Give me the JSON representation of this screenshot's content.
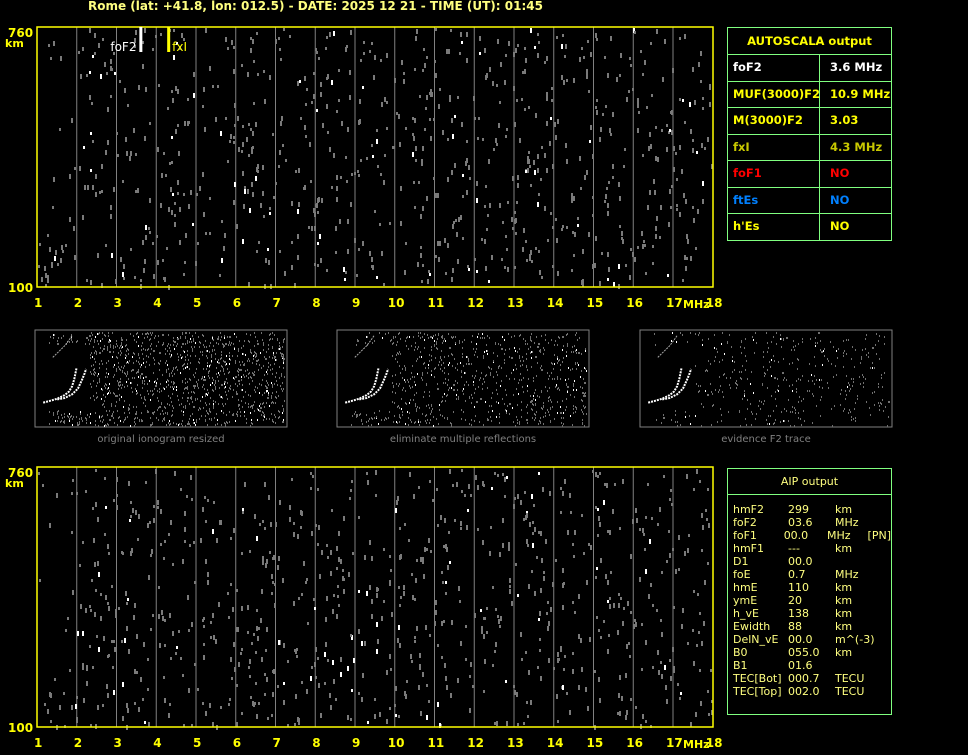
{
  "header": {
    "title": "Rome (lat: +41.8, lon: 012.5) - DATE: 2025 12 21 - TIME (UT): 01:45"
  },
  "colors": {
    "axis": "#ffff00",
    "grid": "#808080",
    "trace": "#ffffff",
    "aip_profile": "#0000ff",
    "aip_fit": "#00ff00",
    "table_border": "#80ff80",
    "foF1": "#ff0000",
    "ftEs": "#0080ff",
    "fxI": "#c8c800"
  },
  "chart_data": [
    {
      "type": "scatter",
      "name": "ionogram-autoscala",
      "ylabel": "km",
      "xlabel": "MHz",
      "xlim": [
        1,
        18
      ],
      "ylim": [
        100,
        760
      ],
      "grid": true,
      "x_ticks": [
        "1",
        "2",
        "3",
        "4",
        "5",
        "6",
        "7",
        "8",
        "9",
        "10",
        "11",
        "12",
        "13",
        "14",
        "15",
        "16",
        "17",
        "18"
      ],
      "y_ticks": [
        "760",
        "700",
        "600",
        "500",
        "400",
        "300",
        "200",
        "100"
      ],
      "markers": [
        {
          "label": "foF2",
          "freq": 3.6,
          "color": "#ffffff"
        },
        {
          "label": "fxI",
          "freq": 4.3,
          "color": "#ffff00"
        }
      ],
      "traces": [
        {
          "role": "o-trace",
          "points": [
            [
              1.35,
              268
            ],
            [
              1.8,
              280
            ],
            [
              2.3,
              295
            ],
            [
              2.8,
              320
            ],
            [
              3.1,
              345
            ],
            [
              3.3,
              380
            ],
            [
              3.45,
              430
            ],
            [
              3.55,
              480
            ],
            [
              3.6,
              505
            ]
          ]
        },
        {
          "role": "x-trace",
          "points": [
            [
              2.3,
              290
            ],
            [
              2.8,
              300
            ],
            [
              3.3,
              325
            ],
            [
              3.7,
              365
            ],
            [
              3.95,
              420
            ],
            [
              4.15,
              470
            ],
            [
              4.25,
              500
            ]
          ]
        },
        {
          "role": "multiple",
          "points": [
            [
              2.0,
              580
            ],
            [
              2.4,
              620
            ],
            [
              2.8,
              660
            ],
            [
              3.1,
              700
            ],
            [
              3.3,
              730
            ]
          ]
        }
      ]
    },
    {
      "type": "scatter",
      "name": "ionogram-aip",
      "ylabel": "km",
      "xlabel": "MHz",
      "xlim": [
        1,
        18
      ],
      "ylim": [
        100,
        760
      ],
      "grid": true,
      "x_ticks": [
        "1",
        "2",
        "3",
        "4",
        "5",
        "6",
        "7",
        "8",
        "9",
        "10",
        "11",
        "12",
        "13",
        "14",
        "15",
        "16",
        "17",
        "18"
      ],
      "y_ticks": [
        "760",
        "700",
        "600",
        "500",
        "400",
        "300",
        "200",
        "100"
      ],
      "profile": [
        [
          1.1,
          268
        ],
        [
          1.5,
          275
        ],
        [
          2.0,
          288
        ],
        [
          2.5,
          300
        ],
        [
          2.9,
          315
        ],
        [
          3.2,
          335
        ],
        [
          3.4,
          355
        ],
        [
          3.55,
          395
        ],
        [
          3.6,
          430
        ]
      ],
      "fit": [
        [
          1.0,
          570
        ],
        [
          1.4,
          510
        ],
        [
          1.9,
          450
        ],
        [
          2.4,
          410
        ],
        [
          3.0,
          385
        ],
        [
          3.3,
          355
        ],
        [
          3.55,
          330
        ],
        [
          3.6,
          310
        ],
        [
          3.2,
          298
        ],
        [
          2.5,
          285
        ],
        [
          1.8,
          268
        ],
        [
          1.3,
          248
        ],
        [
          1.0,
          232
        ]
      ]
    }
  ],
  "autoscala": {
    "title": "AUTOSCALA output",
    "rows": [
      {
        "key": "foF2",
        "value": "3.6 MHz",
        "color": "#ffffff"
      },
      {
        "key": "MUF(3000)F2",
        "value": "10.9 MHz",
        "color": "#ffff00"
      },
      {
        "key": "M(3000)F2",
        "value": "3.03",
        "color": "#ffff00"
      },
      {
        "key": "fxI",
        "value": "4.3 MHz",
        "color": "#c8c800"
      },
      {
        "key": "foF1",
        "value": "NO",
        "color": "#ff0000"
      },
      {
        "key": "ftEs",
        "value": "NO",
        "color": "#0080ff"
      },
      {
        "key": "h'Es",
        "value": "NO",
        "color": "#ffff00"
      }
    ]
  },
  "thumbnails": [
    {
      "caption": "original ionogram resized"
    },
    {
      "caption": "eliminate multiple reflections"
    },
    {
      "caption": "evidence F2 trace"
    }
  ],
  "aip": {
    "title": "AIP output",
    "rows": [
      {
        "key": "hmF2",
        "value": "299",
        "unit": "km",
        "extra": ""
      },
      {
        "key": "foF2",
        "value": "03.6",
        "unit": "MHz",
        "extra": ""
      },
      {
        "key": "foF1",
        "value": "00.0",
        "unit": "MHz",
        "extra": "[PN]"
      },
      {
        "key": "hmF1",
        "value": "---",
        "unit": "km",
        "extra": ""
      },
      {
        "key": "D1",
        "value": "00.0",
        "unit": "",
        "extra": ""
      },
      {
        "key": "foE",
        "value": "0.7",
        "unit": "MHz",
        "extra": ""
      },
      {
        "key": "hmE",
        "value": "110",
        "unit": "km",
        "extra": ""
      },
      {
        "key": "ymE",
        "value": "20",
        "unit": "km",
        "extra": ""
      },
      {
        "key": "h_vE",
        "value": "138",
        "unit": "km",
        "extra": ""
      },
      {
        "key": "Ewidth",
        "value": "88",
        "unit": "km",
        "extra": ""
      },
      {
        "key": "DelN_vE",
        "value": "00.0",
        "unit": "m^(-3)",
        "extra": ""
      },
      {
        "key": "B0",
        "value": "055.0",
        "unit": "km",
        "extra": ""
      },
      {
        "key": "B1",
        "value": "01.6",
        "unit": "",
        "extra": ""
      },
      {
        "key": "TEC[Bot]",
        "value": "000.7",
        "unit": "TECU",
        "extra": ""
      },
      {
        "key": "TEC[Top]",
        "value": "002.0",
        "unit": "TECU",
        "extra": ""
      }
    ]
  }
}
